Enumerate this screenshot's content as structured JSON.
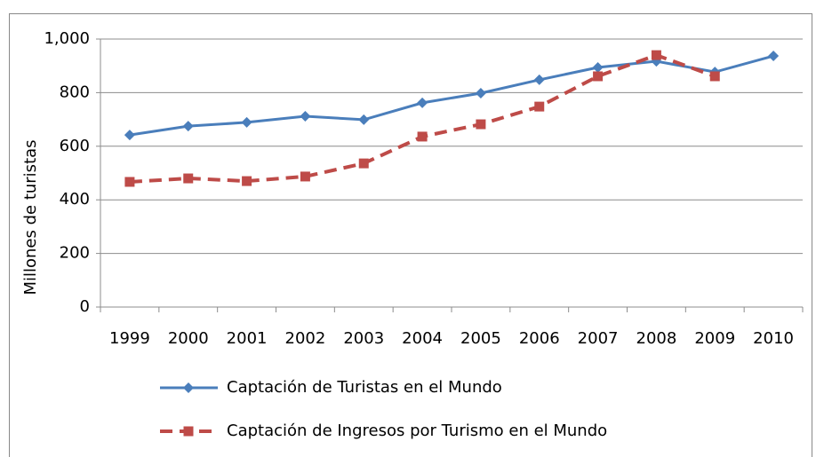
{
  "chart_data": {
    "type": "line",
    "ylabel": "Millones de turistas",
    "categories": [
      "1999",
      "2000",
      "2001",
      "2002",
      "2003",
      "2004",
      "2005",
      "2006",
      "2007",
      "2008",
      "2009",
      "2010"
    ],
    "series": [
      {
        "name": "Captación de Turistas en el Mundo",
        "color": "#4a7ebb",
        "marker": "diamond",
        "dash": false,
        "values": [
          642,
          675,
          689,
          712,
          699,
          762,
          798,
          848,
          894,
          917,
          877,
          937
        ]
      },
      {
        "name": "Captación de Ingresos por Turismo en el Mundo",
        "color": "#be4b48",
        "marker": "square",
        "dash": true,
        "values": [
          467,
          480,
          470,
          487,
          536,
          636,
          682,
          748,
          861,
          940,
          861,
          null
        ]
      }
    ],
    "ylim": [
      0,
      1000
    ],
    "yticks": [
      0,
      200,
      400,
      600,
      800,
      {
        "value": 1000,
        "label": "1,000"
      }
    ],
    "grid": true,
    "legend": "bottom"
  }
}
